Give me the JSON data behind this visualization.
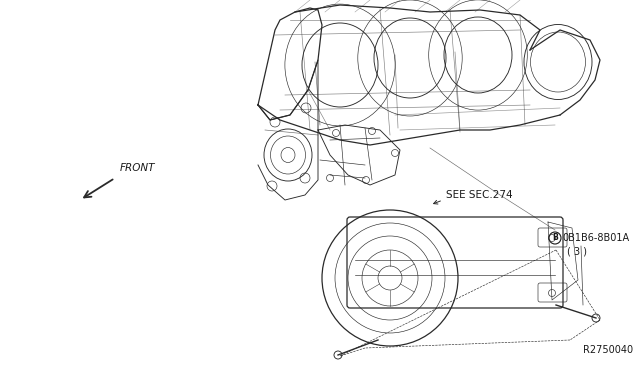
{
  "background_color": "#ffffff",
  "fig_width": 6.4,
  "fig_height": 3.72,
  "dpi": 100,
  "labels": {
    "front_text": "FRONT",
    "see_sec": "SEE SEC.274",
    "part_circle": "B",
    "part_number": "0B1B6-8B01A",
    "qty": "( 3 )",
    "ref_number": "R2750040"
  },
  "line_color": "#2a2a2a",
  "text_color": "#1a1a1a",
  "font_size_small": 7.5,
  "font_size_label": 7.0
}
